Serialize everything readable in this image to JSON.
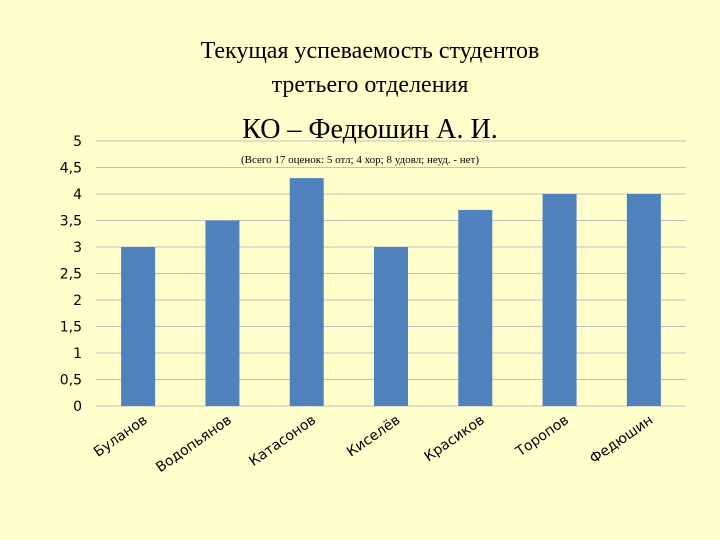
{
  "page": {
    "title_line1": "Текущая успеваемость студентов",
    "title_line2": "третьего отделения",
    "title_line3": "КО – Федюшин А. И.",
    "subtitle": "(Всего 17 оценок: 5 отл; 4 хор; 8 удовл; неуд. - нет)"
  },
  "chart_data": {
    "type": "bar",
    "categories": [
      "Буланов",
      "Водопьянов",
      "Катасонов",
      "Киселёв",
      "Красиков",
      "Торопов",
      "Федюшин"
    ],
    "values": [
      3,
      3.5,
      4.3,
      3,
      3.7,
      4,
      4
    ],
    "ylim": [
      0,
      5
    ],
    "yticks": [
      "0",
      "0,5",
      "1",
      "1,5",
      "2",
      "2,5",
      "3",
      "3,5",
      "4",
      "4,5",
      "5"
    ],
    "grid": true,
    "bar_color": "#4F81BD",
    "grid_color": "#BFBFBF",
    "legend": "none"
  }
}
